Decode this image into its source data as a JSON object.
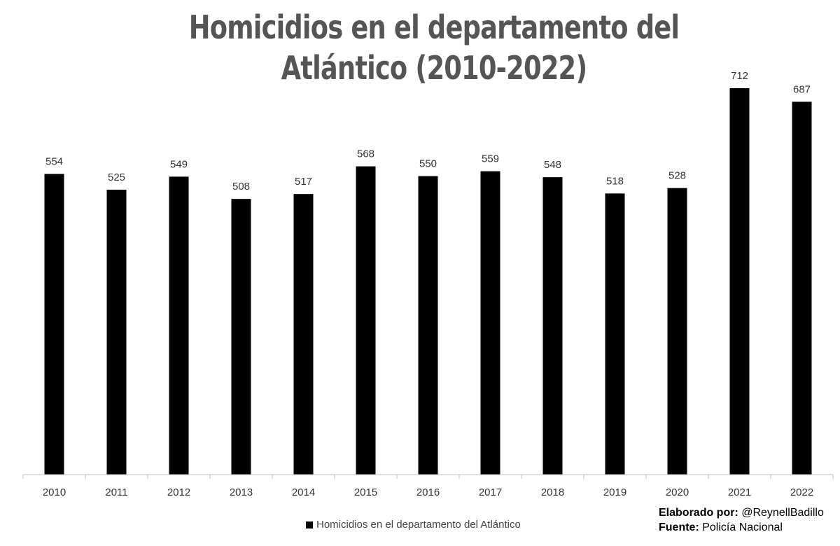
{
  "chart_data": {
    "type": "bar",
    "title": "Homicidios en el departamento del Atlántico (2010-2022)",
    "categories": [
      "2010",
      "2011",
      "2012",
      "2013",
      "2014",
      "2015",
      "2016",
      "2017",
      "2018",
      "2019",
      "2020",
      "2021",
      "2022"
    ],
    "series": [
      {
        "name": "Homicidios en el departamento del Atlántico",
        "values": [
          554,
          525,
          549,
          508,
          517,
          568,
          550,
          559,
          548,
          518,
          528,
          712,
          687
        ],
        "color": "#000000"
      }
    ],
    "ylim": [
      0,
      712
    ],
    "grid": false,
    "legend": "bottom-center",
    "data_labels": true
  },
  "credits": {
    "made_by_label": "Elaborado por:",
    "made_by_value": "@ReynellBadillo",
    "source_label": "Fuente:",
    "source_value": "Policía Nacional"
  }
}
